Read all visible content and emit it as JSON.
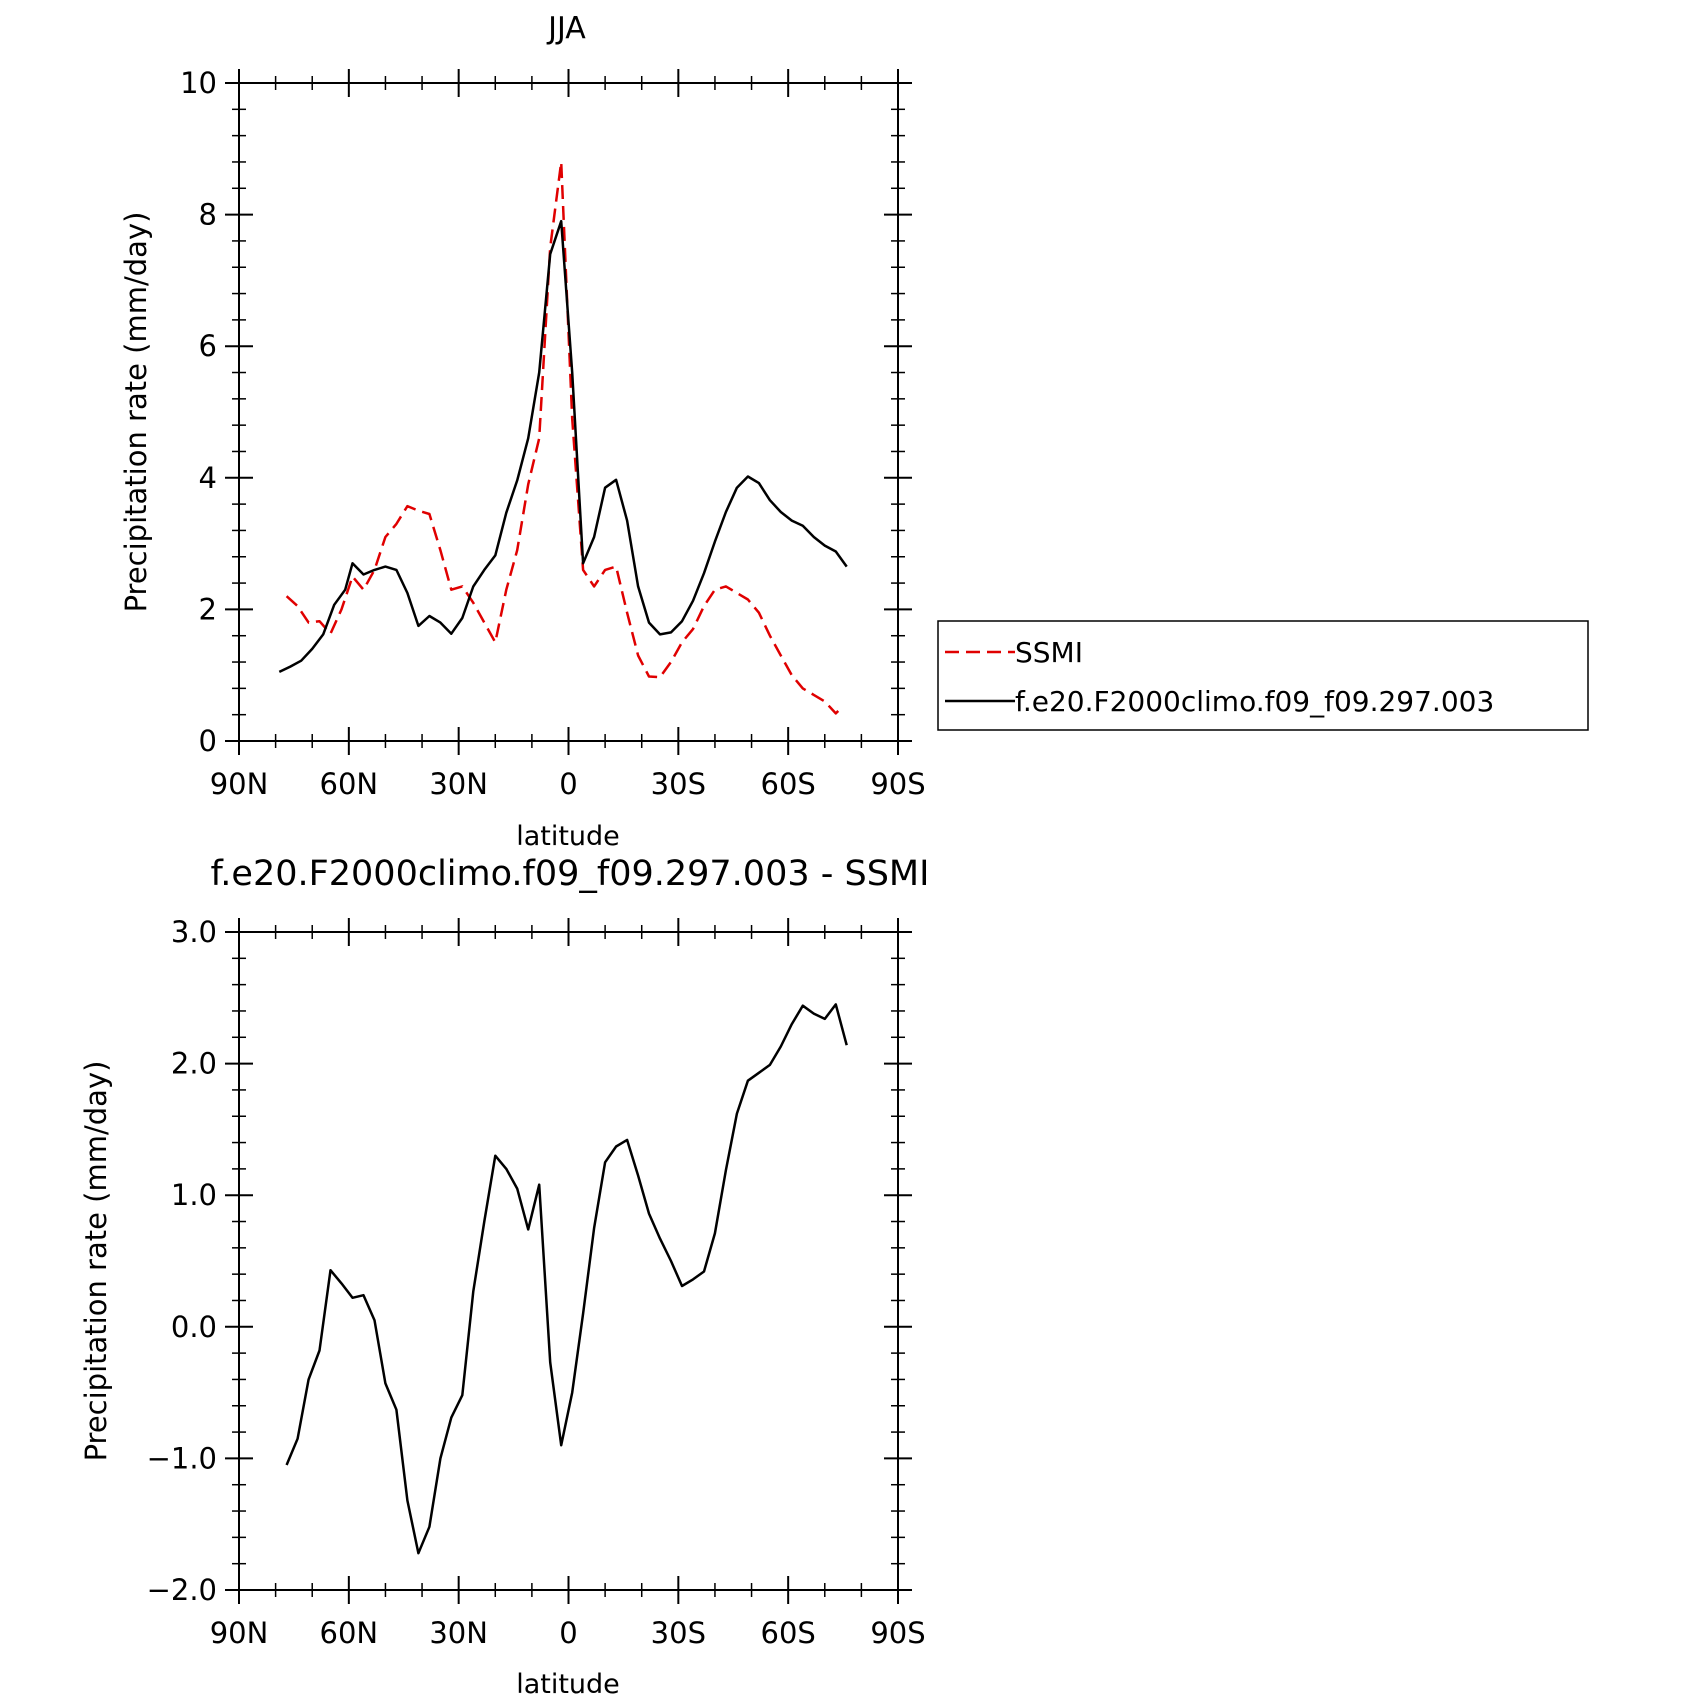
{
  "chart_data": [
    {
      "type": "line",
      "title": "JJA",
      "xlabel": "latitude",
      "ylabel": "Precipitation rate (mm/day)",
      "xlim": [
        90,
        -90
      ],
      "ylim": [
        0,
        10
      ],
      "x_ticks": [
        {
          "value": 90,
          "label": "90N"
        },
        {
          "value": 60,
          "label": "60N"
        },
        {
          "value": 30,
          "label": "30N"
        },
        {
          "value": 0,
          "label": "0"
        },
        {
          "value": -30,
          "label": "30S"
        },
        {
          "value": -60,
          "label": "60S"
        },
        {
          "value": -90,
          "label": "90S"
        }
      ],
      "y_ticks": [
        {
          "value": 0,
          "label": "0"
        },
        {
          "value": 2,
          "label": "2"
        },
        {
          "value": 4,
          "label": "4"
        },
        {
          "value": 6,
          "label": "6"
        },
        {
          "value": 8,
          "label": "8"
        },
        {
          "value": 10,
          "label": "10"
        }
      ],
      "grid": false,
      "legend": "right",
      "series": [
        {
          "name": "SSMI",
          "color": "#e00000",
          "style": "dashed",
          "points": [
            [
              77,
              2.2
            ],
            [
              74,
              2.05
            ],
            [
              71,
              1.8
            ],
            [
              68,
              1.82
            ],
            [
              65,
              1.63
            ],
            [
              62,
              2.0
            ],
            [
              59,
              2.5
            ],
            [
              56,
              2.3
            ],
            [
              53,
              2.6
            ],
            [
              50,
              3.1
            ],
            [
              47,
              3.3
            ],
            [
              44,
              3.57
            ],
            [
              41,
              3.5
            ],
            [
              38,
              3.45
            ],
            [
              35,
              2.9
            ],
            [
              32,
              2.3
            ],
            [
              29,
              2.35
            ],
            [
              26,
              2.1
            ],
            [
              23,
              1.8
            ],
            [
              20,
              1.5
            ],
            [
              17,
              2.3
            ],
            [
              14,
              2.9
            ],
            [
              11,
              3.9
            ],
            [
              8,
              4.6
            ],
            [
              5,
              7.5
            ],
            [
              2,
              8.8
            ],
            [
              -1,
              4.9
            ],
            [
              -4,
              2.6
            ],
            [
              -7,
              2.35
            ],
            [
              -10,
              2.6
            ],
            [
              -13,
              2.65
            ],
            [
              -16,
              1.95
            ],
            [
              -19,
              1.3
            ],
            [
              -22,
              0.98
            ],
            [
              -25,
              0.97
            ],
            [
              -28,
              1.2
            ],
            [
              -31,
              1.5
            ],
            [
              -34,
              1.7
            ],
            [
              -37,
              2.05
            ],
            [
              -40,
              2.3
            ],
            [
              -43,
              2.35
            ],
            [
              -46,
              2.25
            ],
            [
              -49,
              2.15
            ],
            [
              -52,
              1.95
            ],
            [
              -55,
              1.6
            ],
            [
              -58,
              1.3
            ],
            [
              -61,
              1.0
            ],
            [
              -64,
              0.8
            ],
            [
              -67,
              0.7
            ],
            [
              -70,
              0.6
            ],
            [
              -73,
              0.42
            ],
            [
              -75,
              0.53
            ]
          ]
        },
        {
          "name": "f.e20.F2000climo.f09_f09.297.003",
          "color": "#000000",
          "style": "solid",
          "points": [
            [
              79,
              1.05
            ],
            [
              76,
              1.13
            ],
            [
              73,
              1.22
            ],
            [
              70,
              1.4
            ],
            [
              67,
              1.62
            ],
            [
              64,
              2.07
            ],
            [
              61,
              2.3
            ],
            [
              59,
              2.7
            ],
            [
              56,
              2.53
            ],
            [
              53,
              2.6
            ],
            [
              50,
              2.65
            ],
            [
              47,
              2.6
            ],
            [
              44,
              2.25
            ],
            [
              41,
              1.75
            ],
            [
              38,
              1.9
            ],
            [
              35,
              1.8
            ],
            [
              32,
              1.63
            ],
            [
              29,
              1.87
            ],
            [
              26,
              2.35
            ],
            [
              23,
              2.6
            ],
            [
              20,
              2.82
            ],
            [
              17,
              3.47
            ],
            [
              14,
              3.96
            ],
            [
              11,
              4.6
            ],
            [
              8,
              5.6
            ],
            [
              5,
              7.4
            ],
            [
              2,
              7.9
            ],
            [
              -1,
              5.6
            ],
            [
              -4,
              2.7
            ],
            [
              -7,
              3.1
            ],
            [
              -10,
              3.85
            ],
            [
              -13,
              3.97
            ],
            [
              -16,
              3.35
            ],
            [
              -19,
              2.35
            ],
            [
              -22,
              1.8
            ],
            [
              -25,
              1.62
            ],
            [
              -28,
              1.65
            ],
            [
              -31,
              1.82
            ],
            [
              -34,
              2.13
            ],
            [
              -37,
              2.55
            ],
            [
              -40,
              3.03
            ],
            [
              -43,
              3.48
            ],
            [
              -46,
              3.85
            ],
            [
              -49,
              4.02
            ],
            [
              -52,
              3.92
            ],
            [
              -55,
              3.66
            ],
            [
              -58,
              3.48
            ],
            [
              -61,
              3.35
            ],
            [
              -64,
              3.27
            ],
            [
              -67,
              3.1
            ],
            [
              -70,
              2.97
            ],
            [
              -73,
              2.88
            ],
            [
              -76,
              2.65
            ]
          ]
        }
      ]
    },
    {
      "type": "line",
      "title": "f.e20.F2000climo.f09_f09.297.003 - SSMI",
      "xlabel": "latitude",
      "ylabel": "Precipitation rate (mm/day)",
      "xlim": [
        90,
        -90
      ],
      "ylim": [
        -2.0,
        3.0
      ],
      "x_ticks": [
        {
          "value": 90,
          "label": "90N"
        },
        {
          "value": 60,
          "label": "60N"
        },
        {
          "value": 30,
          "label": "30N"
        },
        {
          "value": 0,
          "label": "0"
        },
        {
          "value": -30,
          "label": "30S"
        },
        {
          "value": -60,
          "label": "60S"
        },
        {
          "value": -90,
          "label": "90S"
        }
      ],
      "y_ticks": [
        {
          "value": -2.0,
          "label": "−2.0"
        },
        {
          "value": -1.0,
          "label": "−1.0"
        },
        {
          "value": 0.0,
          "label": "0.0"
        },
        {
          "value": 1.0,
          "label": "1.0"
        },
        {
          "value": 2.0,
          "label": "2.0"
        },
        {
          "value": 3.0,
          "label": "3.0"
        }
      ],
      "grid": false,
      "legend": "none",
      "series": [
        {
          "color": "#000000",
          "style": "solid",
          "points": [
            [
              77,
              -1.05
            ],
            [
              74,
              -0.85
            ],
            [
              71,
              -0.4
            ],
            [
              68,
              -0.18
            ],
            [
              65,
              0.43
            ],
            [
              62,
              0.33
            ],
            [
              59,
              0.22
            ],
            [
              56,
              0.24
            ],
            [
              53,
              0.05
            ],
            [
              50,
              -0.43
            ],
            [
              47,
              -0.63
            ],
            [
              44,
              -1.32
            ],
            [
              41,
              -1.72
            ],
            [
              38,
              -1.52
            ],
            [
              35,
              -1.0
            ],
            [
              32,
              -0.69
            ],
            [
              29,
              -0.52
            ],
            [
              26,
              0.27
            ],
            [
              23,
              0.8
            ],
            [
              20,
              1.3
            ],
            [
              17,
              1.2
            ],
            [
              14,
              1.05
            ],
            [
              11,
              0.74
            ],
            [
              8,
              1.08
            ],
            [
              5,
              -0.27
            ],
            [
              2,
              -0.9
            ],
            [
              -1,
              -0.5
            ],
            [
              -4,
              0.1
            ],
            [
              -7,
              0.75
            ],
            [
              -10,
              1.25
            ],
            [
              -13,
              1.37
            ],
            [
              -16,
              1.42
            ],
            [
              -19,
              1.15
            ],
            [
              -22,
              0.86
            ],
            [
              -25,
              0.67
            ],
            [
              -28,
              0.5
            ],
            [
              -31,
              0.31
            ],
            [
              -34,
              0.36
            ],
            [
              -37,
              0.42
            ],
            [
              -40,
              0.71
            ],
            [
              -43,
              1.19
            ],
            [
              -46,
              1.62
            ],
            [
              -49,
              1.87
            ],
            [
              -52,
              1.93
            ],
            [
              -55,
              1.99
            ],
            [
              -58,
              2.13
            ],
            [
              -61,
              2.3
            ],
            [
              -64,
              2.44
            ],
            [
              -67,
              2.38
            ],
            [
              -70,
              2.34
            ],
            [
              -73,
              2.45
            ],
            [
              -76,
              2.14
            ]
          ]
        }
      ]
    }
  ]
}
